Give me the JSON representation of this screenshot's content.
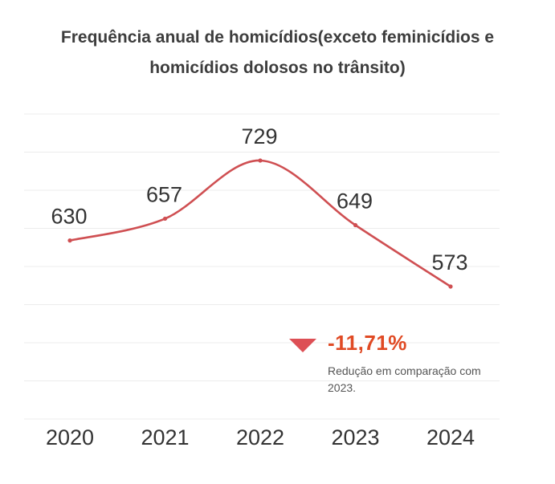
{
  "title_line1": "Frequência anual de homicídios(exceto feminicídios e",
  "title_line2": "homicídios dolosos no trânsito)",
  "chart_data": {
    "type": "line",
    "title": "Frequência anual de homicídios(exceto feminicídios e homicídios dolosos no trânsito)",
    "categories": [
      "2020",
      "2021",
      "2022",
      "2023",
      "2024"
    ],
    "series": [
      {
        "values": [
          630,
          657,
          729,
          649,
          573
        ]
      }
    ],
    "data_labels": [
      "630",
      "657",
      "729",
      "649",
      "573"
    ],
    "xlabel": "",
    "ylabel": "",
    "y_axis_labels_visible": false,
    "ylim": [
      500,
      800
    ],
    "grid": true,
    "smooth": true,
    "colors": {
      "line": "#cf4f52",
      "grid": "#ececec",
      "tick": "#333333",
      "label": "#333333"
    }
  },
  "callout": {
    "percent": "-11,71%",
    "description": "Redução em comparação com 2023.",
    "triangle_color": "#dd4f55",
    "percent_color": "#e04a24"
  }
}
